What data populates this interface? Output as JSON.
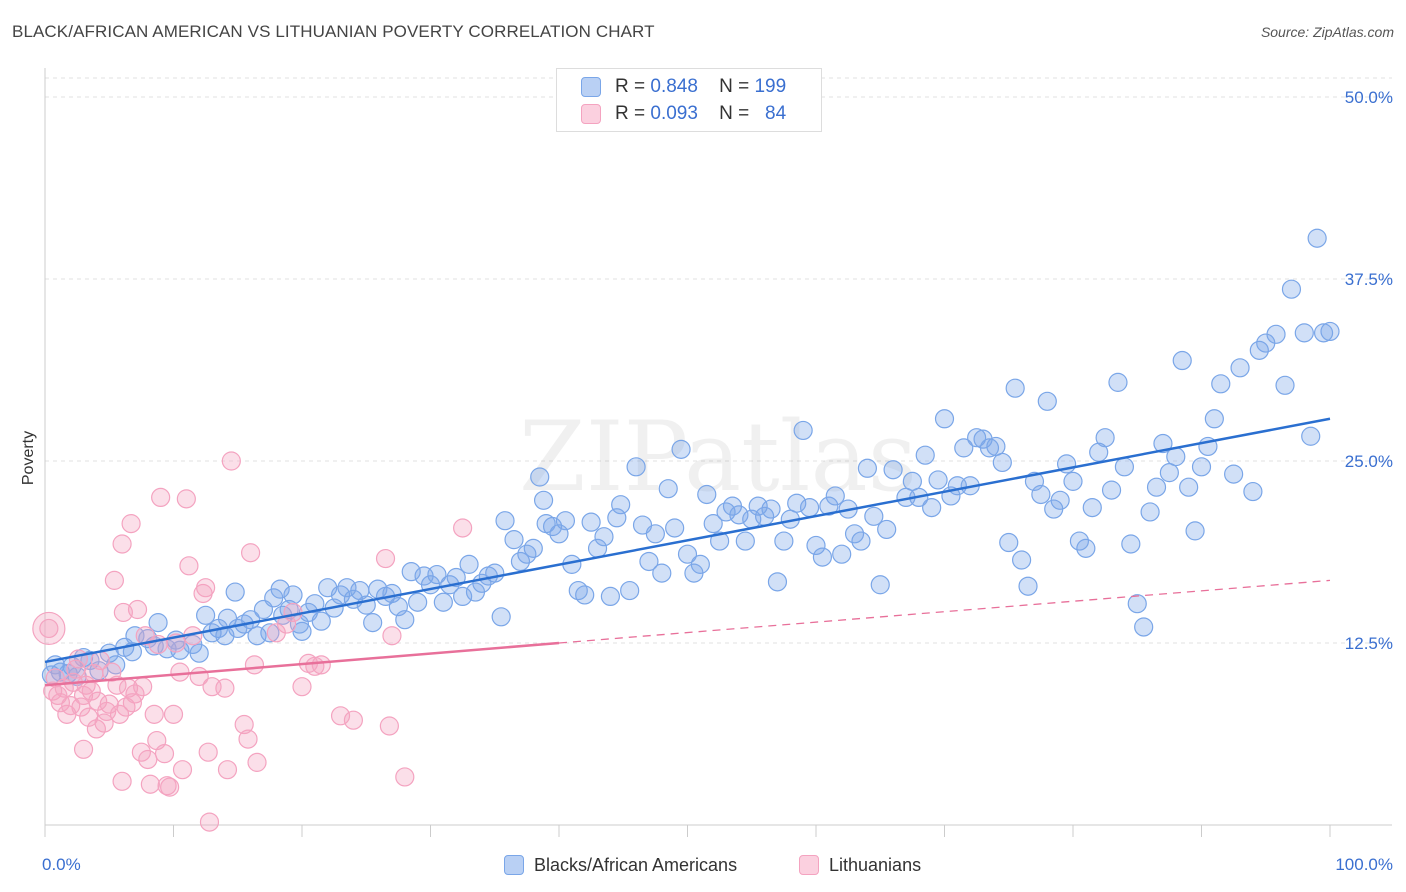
{
  "title": "BLACK/AFRICAN AMERICAN VS LITHUANIAN POVERTY CORRELATION CHART",
  "source": "Source: ZipAtlas.com",
  "watermark": "ZIPatlas",
  "stats": [
    {
      "r_label": "R =",
      "r_value": "0.848",
      "n_label": "N =",
      "n_value": "199"
    },
    {
      "r_label": "R =",
      "r_value": "0.093",
      "n_label": "N =",
      "n_value": "84"
    }
  ],
  "chart_data": {
    "type": "scatter",
    "title": "BLACK/AFRICAN AMERICAN VS LITHUANIAN POVERTY CORRELATION CHART",
    "xlabel": "",
    "ylabel": "Poverty",
    "xlim": [
      0,
      100
    ],
    "ylim": [
      0,
      50
    ],
    "x_tick_labels": [
      "0.0%",
      "100.0%"
    ],
    "y_ticks": [
      12.5,
      25.0,
      37.5,
      50.0
    ],
    "y_tick_labels": [
      "12.5%",
      "25.0%",
      "37.5%",
      "50.0%"
    ],
    "grid": true,
    "legend_position": "bottom",
    "series": [
      {
        "name": "Blacks/African Americans",
        "color": "#7aa6e8",
        "line_color": "#2a6fd0",
        "trend": {
          "x0": 0,
          "y0": 11.2,
          "x1": 100,
          "y1": 27.9
        },
        "points": [
          [
            0.5,
            10.3
          ],
          [
            0.8,
            11.0
          ],
          [
            1.2,
            10.5
          ],
          [
            1.8,
            10.4
          ],
          [
            2.1,
            10.9
          ],
          [
            2.5,
            10.2
          ],
          [
            3.0,
            11.5
          ],
          [
            3.5,
            11.3
          ],
          [
            4.2,
            10.6
          ],
          [
            5.0,
            11.8
          ],
          [
            5.5,
            11.0
          ],
          [
            6.2,
            12.2
          ],
          [
            6.8,
            11.9
          ],
          [
            7.0,
            13.0
          ],
          [
            8.0,
            12.8
          ],
          [
            8.5,
            12.3
          ],
          [
            8.8,
            13.9
          ],
          [
            9.5,
            12.1
          ],
          [
            10.2,
            12.7
          ],
          [
            10.5,
            12.0
          ],
          [
            11.5,
            12.4
          ],
          [
            12.0,
            11.8
          ],
          [
            12.5,
            14.4
          ],
          [
            13.0,
            13.2
          ],
          [
            13.5,
            13.5
          ],
          [
            14.0,
            13.0
          ],
          [
            14.2,
            14.2
          ],
          [
            14.8,
            16.0
          ],
          [
            15.0,
            13.5
          ],
          [
            15.5,
            13.8
          ],
          [
            16.0,
            14.1
          ],
          [
            16.5,
            13.0
          ],
          [
            17.0,
            14.8
          ],
          [
            17.5,
            13.2
          ],
          [
            17.8,
            15.6
          ],
          [
            18.3,
            16.2
          ],
          [
            18.5,
            14.4
          ],
          [
            19.0,
            14.8
          ],
          [
            19.3,
            15.8
          ],
          [
            19.8,
            13.8
          ],
          [
            20.0,
            13.3
          ],
          [
            20.5,
            14.6
          ],
          [
            21.0,
            15.2
          ],
          [
            21.5,
            14.0
          ],
          [
            22.0,
            16.3
          ],
          [
            22.5,
            14.9
          ],
          [
            23.0,
            15.8
          ],
          [
            23.5,
            16.3
          ],
          [
            24.0,
            15.5
          ],
          [
            24.5,
            16.1
          ],
          [
            25.0,
            15.1
          ],
          [
            25.5,
            13.9
          ],
          [
            25.9,
            16.2
          ],
          [
            26.5,
            15.7
          ],
          [
            27.0,
            15.9
          ],
          [
            27.5,
            15.0
          ],
          [
            28.0,
            14.1
          ],
          [
            28.5,
            17.4
          ],
          [
            29.0,
            15.3
          ],
          [
            29.5,
            17.1
          ],
          [
            30.0,
            16.5
          ],
          [
            30.5,
            17.2
          ],
          [
            31.0,
            15.3
          ],
          [
            31.5,
            16.5
          ],
          [
            32.0,
            17.0
          ],
          [
            32.5,
            15.7
          ],
          [
            33.0,
            17.9
          ],
          [
            33.5,
            16.0
          ],
          [
            34.0,
            16.6
          ],
          [
            34.5,
            17.1
          ],
          [
            35.0,
            17.3
          ],
          [
            35.5,
            14.3
          ],
          [
            35.8,
            20.9
          ],
          [
            36.5,
            19.6
          ],
          [
            37.0,
            18.1
          ],
          [
            37.5,
            18.6
          ],
          [
            38.0,
            19.0
          ],
          [
            38.5,
            23.9
          ],
          [
            38.8,
            22.3
          ],
          [
            39.0,
            20.7
          ],
          [
            39.5,
            20.5
          ],
          [
            40.0,
            20.0
          ],
          [
            40.5,
            20.9
          ],
          [
            41.0,
            17.9
          ],
          [
            41.5,
            16.1
          ],
          [
            42.0,
            15.8
          ],
          [
            42.5,
            20.8
          ],
          [
            43.0,
            19.0
          ],
          [
            43.5,
            19.8
          ],
          [
            44.0,
            15.7
          ],
          [
            44.5,
            21.1
          ],
          [
            44.8,
            22.0
          ],
          [
            45.5,
            16.1
          ],
          [
            46.0,
            24.6
          ],
          [
            46.5,
            20.6
          ],
          [
            47.0,
            18.1
          ],
          [
            47.5,
            20.0
          ],
          [
            48.0,
            17.3
          ],
          [
            48.5,
            23.1
          ],
          [
            49.0,
            20.4
          ],
          [
            49.5,
            25.8
          ],
          [
            50.0,
            18.6
          ],
          [
            50.5,
            17.3
          ],
          [
            51.0,
            17.9
          ],
          [
            51.5,
            22.7
          ],
          [
            52.0,
            20.7
          ],
          [
            52.5,
            19.5
          ],
          [
            53.0,
            21.5
          ],
          [
            53.5,
            21.9
          ],
          [
            54.0,
            21.3
          ],
          [
            54.5,
            19.5
          ],
          [
            55.0,
            21.0
          ],
          [
            55.5,
            21.9
          ],
          [
            56.0,
            21.2
          ],
          [
            56.5,
            21.7
          ],
          [
            57.0,
            16.7
          ],
          [
            57.5,
            19.5
          ],
          [
            58.0,
            21.0
          ],
          [
            58.5,
            22.1
          ],
          [
            59.0,
            27.1
          ],
          [
            59.5,
            21.8
          ],
          [
            60.0,
            19.2
          ],
          [
            60.5,
            18.4
          ],
          [
            61.0,
            21.9
          ],
          [
            61.5,
            22.6
          ],
          [
            62.0,
            18.6
          ],
          [
            62.5,
            21.7
          ],
          [
            63.0,
            20.0
          ],
          [
            63.5,
            19.5
          ],
          [
            64.0,
            24.5
          ],
          [
            64.5,
            21.2
          ],
          [
            65.0,
            16.5
          ],
          [
            65.5,
            20.3
          ],
          [
            66.0,
            24.4
          ],
          [
            67.0,
            22.5
          ],
          [
            67.5,
            23.6
          ],
          [
            68.0,
            22.5
          ],
          [
            68.5,
            25.4
          ],
          [
            69.0,
            21.8
          ],
          [
            69.5,
            23.7
          ],
          [
            70.0,
            27.9
          ],
          [
            70.5,
            22.6
          ],
          [
            71.0,
            23.3
          ],
          [
            71.5,
            25.9
          ],
          [
            72.0,
            23.3
          ],
          [
            72.5,
            26.6
          ],
          [
            73.0,
            26.5
          ],
          [
            73.5,
            25.9
          ],
          [
            74.0,
            26.0
          ],
          [
            74.5,
            24.9
          ],
          [
            75.0,
            19.4
          ],
          [
            75.5,
            30.0
          ],
          [
            76.0,
            18.2
          ],
          [
            76.5,
            16.4
          ],
          [
            77.0,
            23.6
          ],
          [
            77.5,
            22.7
          ],
          [
            78.0,
            29.1
          ],
          [
            78.5,
            21.7
          ],
          [
            79.0,
            22.3
          ],
          [
            79.5,
            24.8
          ],
          [
            80.0,
            23.6
          ],
          [
            80.5,
            19.5
          ],
          [
            81.0,
            19.0
          ],
          [
            81.5,
            21.8
          ],
          [
            82.0,
            25.6
          ],
          [
            82.5,
            26.6
          ],
          [
            83.0,
            23.0
          ],
          [
            83.5,
            30.4
          ],
          [
            84.0,
            24.6
          ],
          [
            84.5,
            19.3
          ],
          [
            85.0,
            15.2
          ],
          [
            85.5,
            13.6
          ],
          [
            86.0,
            21.5
          ],
          [
            86.5,
            23.2
          ],
          [
            87.0,
            26.2
          ],
          [
            87.5,
            24.2
          ],
          [
            88.0,
            25.3
          ],
          [
            88.5,
            31.9
          ],
          [
            89.0,
            23.2
          ],
          [
            89.5,
            20.2
          ],
          [
            90.0,
            24.6
          ],
          [
            90.5,
            26.0
          ],
          [
            91.0,
            27.9
          ],
          [
            91.5,
            30.3
          ],
          [
            92.5,
            24.1
          ],
          [
            93.0,
            31.4
          ],
          [
            94.0,
            22.9
          ],
          [
            94.5,
            32.6
          ],
          [
            95.0,
            33.1
          ],
          [
            95.8,
            33.7
          ],
          [
            96.5,
            30.2
          ],
          [
            97.0,
            36.8
          ],
          [
            98.0,
            33.8
          ],
          [
            98.5,
            26.7
          ],
          [
            99.0,
            40.3
          ],
          [
            99.5,
            33.8
          ],
          [
            100.0,
            33.9
          ]
        ]
      },
      {
        "name": "Lithuanians",
        "color": "#f4a3c0",
        "line_color": "#e8709a",
        "trend": {
          "x0": 0,
          "y0": 9.6,
          "x1": 40,
          "y1": 12.5
        },
        "trend_extension": {
          "x0": 40,
          "y0": 12.5,
          "x1": 100,
          "y1": 16.8
        },
        "points": [
          [
            0.3,
            13.5
          ],
          [
            0.6,
            9.2
          ],
          [
            0.8,
            10.1
          ],
          [
            1.0,
            8.9
          ],
          [
            1.2,
            8.4
          ],
          [
            1.5,
            9.4
          ],
          [
            1.7,
            7.6
          ],
          [
            2.0,
            8.2
          ],
          [
            2.2,
            9.8
          ],
          [
            2.4,
            10.7
          ],
          [
            2.6,
            11.4
          ],
          [
            2.8,
            8.1
          ],
          [
            3.0,
            8.9
          ],
          [
            3.2,
            9.6
          ],
          [
            3.4,
            7.4
          ],
          [
            3.6,
            9.2
          ],
          [
            3.8,
            10.4
          ],
          [
            4.0,
            6.6
          ],
          [
            4.1,
            8.5
          ],
          [
            4.3,
            11.3
          ],
          [
            4.6,
            7.0
          ],
          [
            4.8,
            7.8
          ],
          [
            5.0,
            8.3
          ],
          [
            5.2,
            10.5
          ],
          [
            5.4,
            16.8
          ],
          [
            5.6,
            9.6
          ],
          [
            5.8,
            7.6
          ],
          [
            6.0,
            19.3
          ],
          [
            6.1,
            14.6
          ],
          [
            6.3,
            8.1
          ],
          [
            6.5,
            9.4
          ],
          [
            6.7,
            20.7
          ],
          [
            6.8,
            8.4
          ],
          [
            7.0,
            9.0
          ],
          [
            7.2,
            14.8
          ],
          [
            7.5,
            5.0
          ],
          [
            7.6,
            9.5
          ],
          [
            7.8,
            13.0
          ],
          [
            8.0,
            4.5
          ],
          [
            8.2,
            2.8
          ],
          [
            8.5,
            7.6
          ],
          [
            8.7,
            5.8
          ],
          [
            8.8,
            12.4
          ],
          [
            9.0,
            22.5
          ],
          [
            9.3,
            4.9
          ],
          [
            9.5,
            2.7
          ],
          [
            9.7,
            2.6
          ],
          [
            10.0,
            7.6
          ],
          [
            10.2,
            12.5
          ],
          [
            10.5,
            10.5
          ],
          [
            10.7,
            3.8
          ],
          [
            11.0,
            22.4
          ],
          [
            11.2,
            17.8
          ],
          [
            11.5,
            13.0
          ],
          [
            12.0,
            10.2
          ],
          [
            12.3,
            15.9
          ],
          [
            12.5,
            16.3
          ],
          [
            12.7,
            5.0
          ],
          [
            12.8,
            0.2
          ],
          [
            13.0,
            9.5
          ],
          [
            14.2,
            3.8
          ],
          [
            14.5,
            25.0
          ],
          [
            15.5,
            6.9
          ],
          [
            15.8,
            5.9
          ],
          [
            16.0,
            18.7
          ],
          [
            16.3,
            11.0
          ],
          [
            16.5,
            4.3
          ],
          [
            18.0,
            13.2
          ],
          [
            18.8,
            13.8
          ],
          [
            19.3,
            14.6
          ],
          [
            20.0,
            9.5
          ],
          [
            20.5,
            11.1
          ],
          [
            21.0,
            10.9
          ],
          [
            21.5,
            11.0
          ],
          [
            23.0,
            7.5
          ],
          [
            24.0,
            7.2
          ],
          [
            26.5,
            18.3
          ],
          [
            27.0,
            13.0
          ],
          [
            26.8,
            6.8
          ],
          [
            28.0,
            3.3
          ],
          [
            32.5,
            20.4
          ],
          [
            14.0,
            9.4
          ],
          [
            3.0,
            5.2
          ],
          [
            6.0,
            3.0
          ]
        ]
      }
    ]
  }
}
